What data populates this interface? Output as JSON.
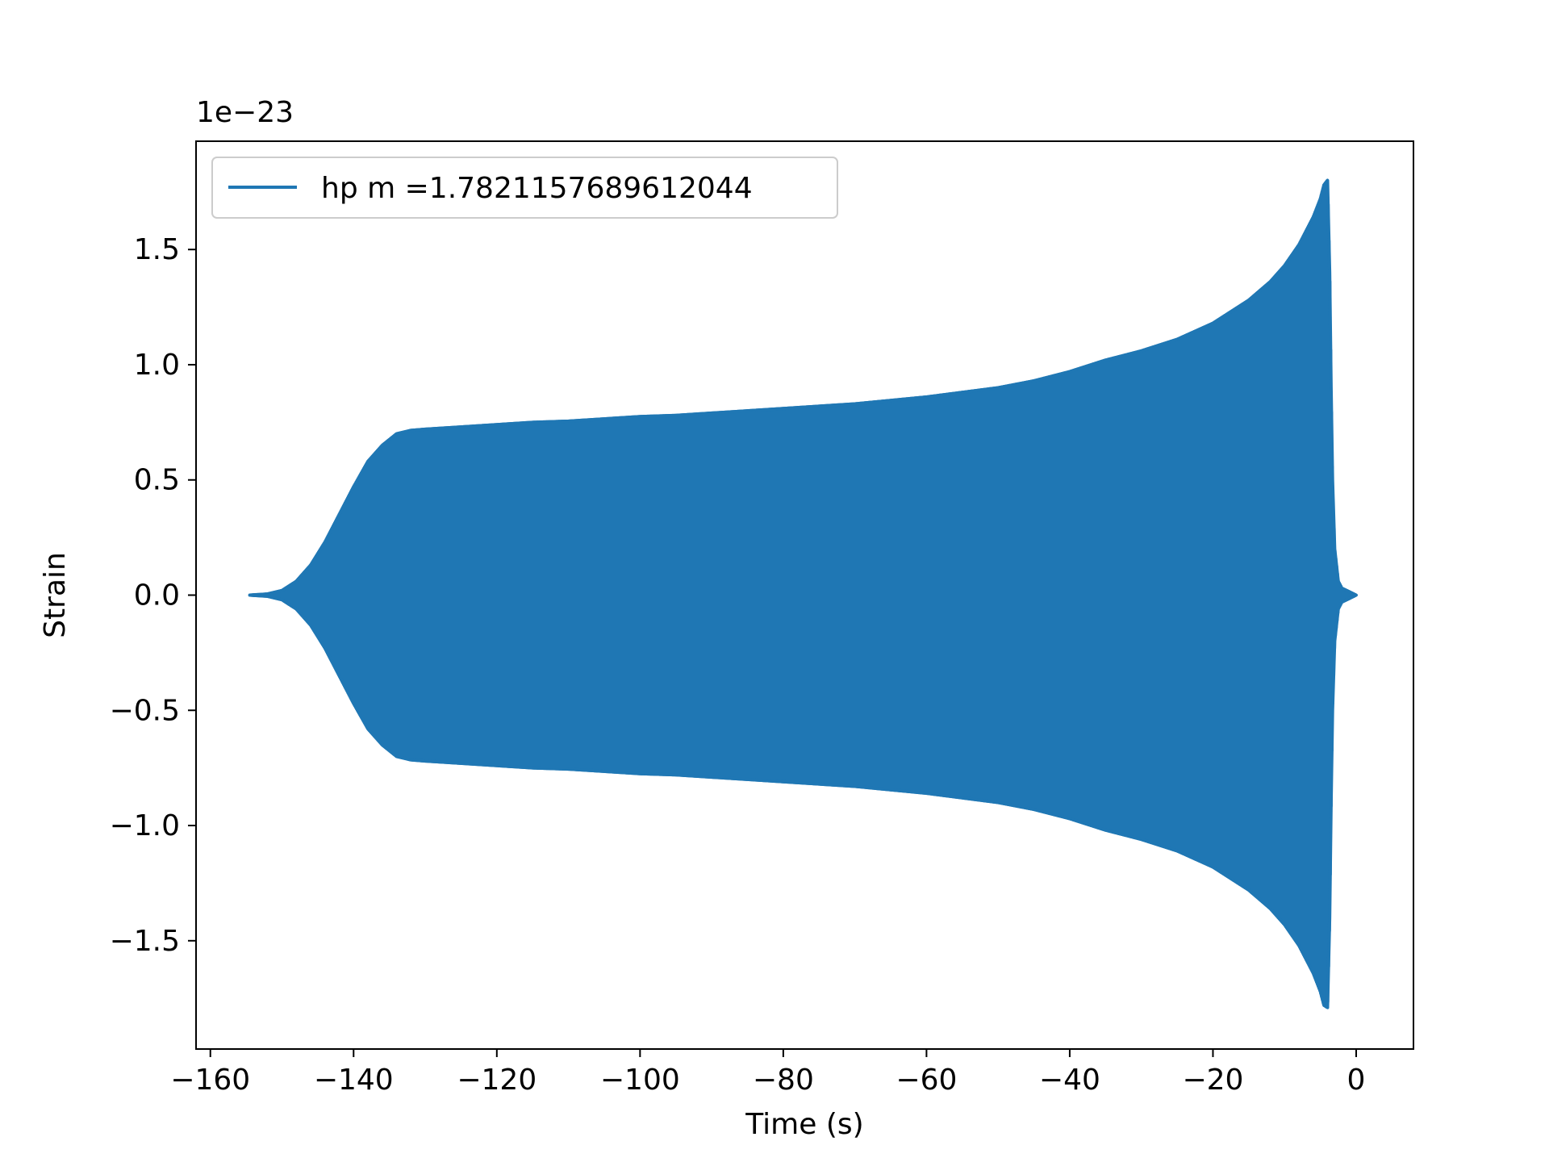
{
  "chart_data": {
    "type": "line",
    "title": "",
    "xlabel": "Time (s)",
    "ylabel": "Strain",
    "y_offset_label": "1e−23",
    "xlim": [
      -162,
      8
    ],
    "ylim": [
      -1.97,
      1.97
    ],
    "x_ticks": [
      -160,
      -140,
      -120,
      -100,
      -80,
      -60,
      -40,
      -20,
      0
    ],
    "x_tick_labels": [
      "−160",
      "−140",
      "−120",
      "−100",
      "−80",
      "−60",
      "−40",
      "−20",
      "0"
    ],
    "y_ticks": [
      -1.5,
      -1.0,
      -0.5,
      0.0,
      0.5,
      1.0,
      1.5
    ],
    "y_tick_labels": [
      "−1.5",
      "−1.0",
      "−0.5",
      "0.0",
      "0.5",
      "1.0",
      "1.5"
    ],
    "grid": false,
    "legend_position": "upper-left",
    "series": [
      {
        "name": "hp m =1.7821157689612044",
        "color": "#1f77b4",
        "envelope": {
          "t": [
            -154.5,
            -152,
            -150,
            -148,
            -146,
            -144,
            -142,
            -140,
            -138,
            -136,
            -134,
            -132,
            -130,
            -125,
            -120,
            -115,
            -110,
            -105,
            -100,
            -95,
            -90,
            -85,
            -80,
            -75,
            -70,
            -65,
            -60,
            -55,
            -50,
            -45,
            -40,
            -35,
            -30,
            -25,
            -20,
            -15,
            -12,
            -10,
            -8,
            -6,
            -5,
            -4.5,
            -4,
            -3.7,
            -3.5,
            -3.3,
            -3.0,
            -2.5,
            -2,
            -1,
            0
          ],
          "upper": [
            0.0,
            0.005,
            0.02,
            0.06,
            0.13,
            0.23,
            0.35,
            0.47,
            0.58,
            0.65,
            0.7,
            0.715,
            0.72,
            0.73,
            0.74,
            0.75,
            0.755,
            0.765,
            0.775,
            0.78,
            0.79,
            0.8,
            0.81,
            0.82,
            0.83,
            0.845,
            0.86,
            0.88,
            0.9,
            0.93,
            0.97,
            1.02,
            1.06,
            1.11,
            1.18,
            1.28,
            1.36,
            1.43,
            1.52,
            1.64,
            1.72,
            1.78,
            1.8,
            1.4,
            0.9,
            0.5,
            0.2,
            0.06,
            0.03,
            0.015,
            0.0
          ],
          "lower": [
            0.0,
            -0.005,
            -0.02,
            -0.06,
            -0.13,
            -0.23,
            -0.35,
            -0.47,
            -0.58,
            -0.65,
            -0.7,
            -0.715,
            -0.72,
            -0.73,
            -0.74,
            -0.75,
            -0.755,
            -0.765,
            -0.775,
            -0.78,
            -0.79,
            -0.8,
            -0.81,
            -0.82,
            -0.83,
            -0.845,
            -0.86,
            -0.88,
            -0.9,
            -0.93,
            -0.97,
            -1.02,
            -1.06,
            -1.11,
            -1.18,
            -1.28,
            -1.36,
            -1.43,
            -1.52,
            -1.64,
            -1.72,
            -1.78,
            -1.79,
            -1.4,
            -0.9,
            -0.5,
            -0.2,
            -0.06,
            -0.03,
            -0.015,
            0.0
          ]
        }
      }
    ]
  }
}
